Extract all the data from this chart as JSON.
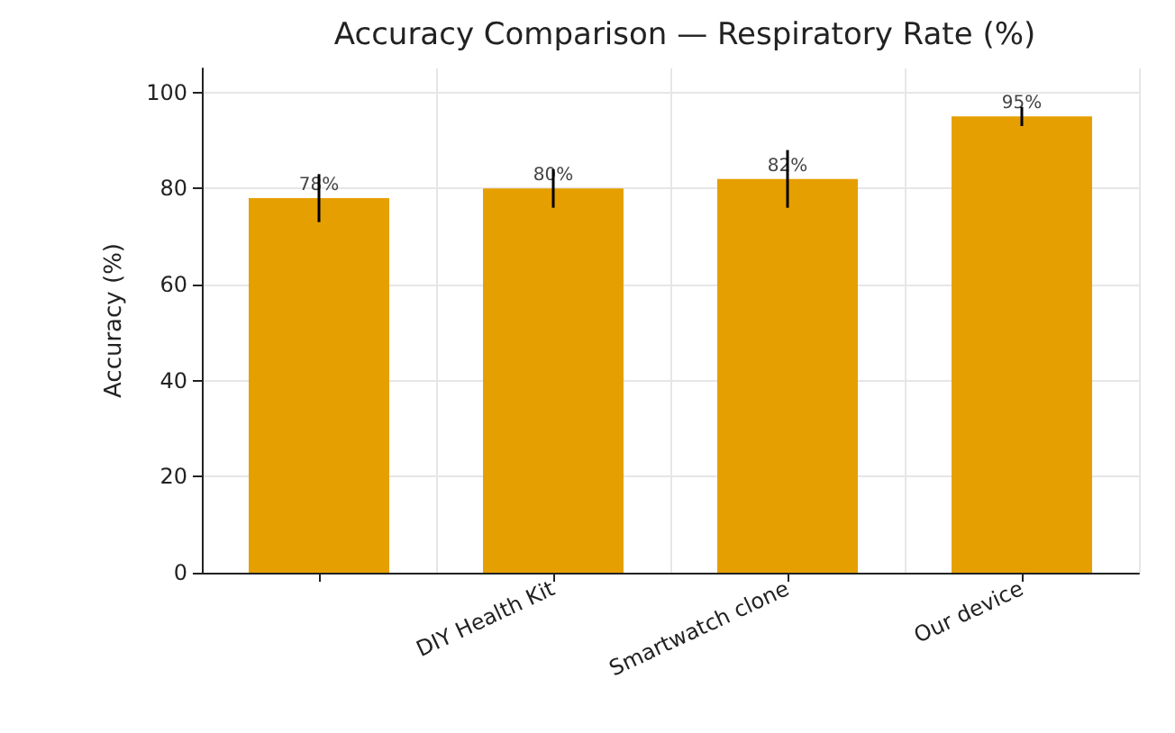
{
  "chart_data": {
    "type": "bar",
    "title": "Accuracy Comparison — Respiratory Rate (%)",
    "ylabel": "Accuracy (%)",
    "categories": [
      null,
      "DIY Health Kit",
      "Smartwatch clone",
      "Our device"
    ],
    "values": [
      78,
      80,
      82,
      95
    ],
    "errors": [
      5,
      4,
      6,
      2
    ],
    "value_labels": [
      "78%",
      "80%",
      "82%",
      "95%"
    ],
    "color": "#e69f00",
    "ylim": [
      0,
      105
    ],
    "yticks": [
      0,
      20,
      40,
      60,
      80,
      100
    ],
    "grid": true
  }
}
